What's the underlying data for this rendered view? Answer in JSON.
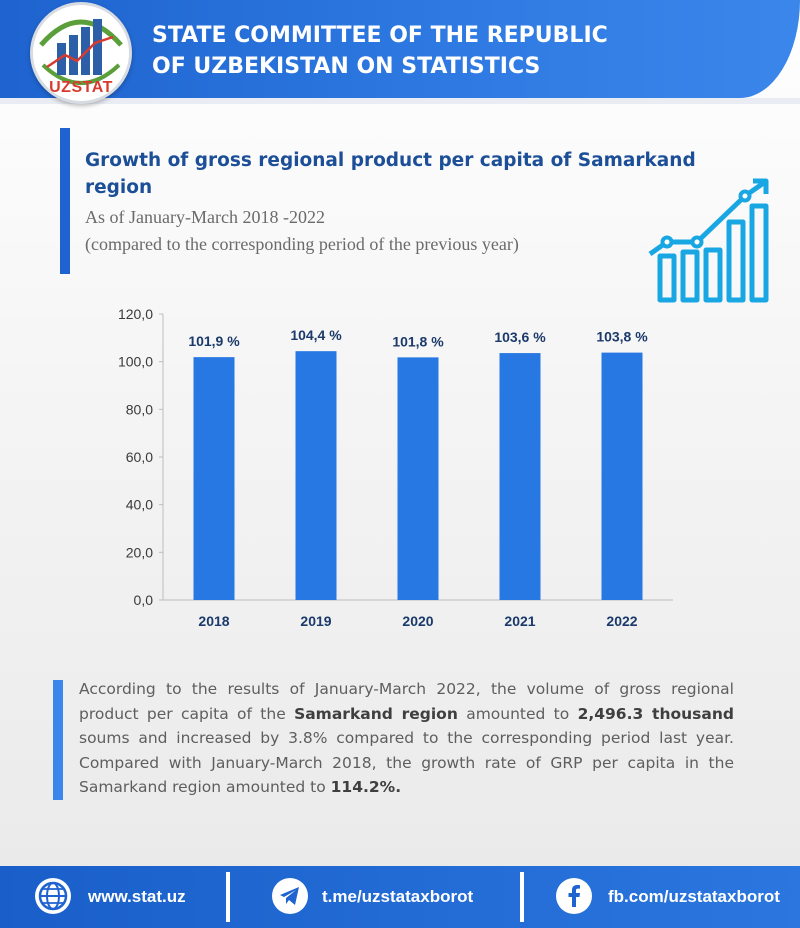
{
  "header": {
    "logo_text": "UZSTAT",
    "title_line1": "STATE COMMITTEE OF THE REPUBLIC",
    "title_line2": "OF UZBEKISTAN ON STATISTICS"
  },
  "chart_data": {
    "type": "bar",
    "title": "Growth of gross regional product per capita of Samarkand region",
    "subtitle": "As of January-March 2018 -2022",
    "subtitle2": "(compared to the corresponding period of the previous year)",
    "categories": [
      "2018",
      "2019",
      "2020",
      "2021",
      "2022"
    ],
    "values": [
      101.9,
      104.4,
      101.8,
      103.6,
      103.8
    ],
    "value_labels": [
      "101,9 %",
      "104,4 %",
      "101,8 %",
      "103,6 %",
      "103,8 %"
    ],
    "y_ticks": [
      "0,0",
      "20,0",
      "40,0",
      "60,0",
      "80,0",
      "100,0",
      "120,0"
    ],
    "ylim": [
      0,
      120
    ],
    "xlabel": "",
    "ylabel": "",
    "grid": false,
    "bar_color": "#2778e3"
  },
  "description": {
    "p1": "According to the results of January-March 2022, the volume of gross regional product per capita of the ",
    "b1": "Samarkand region",
    "p2": " amounted to ",
    "b2": "2,496.3 thousand",
    "p3": " soums and increased by 3.8% compared to the corresponding period last year. Compared with January-March 2018, the growth rate of GRP per capita in the Samarkand region amounted to ",
    "b3": "114.2%."
  },
  "footer": {
    "website": "www.stat.uz",
    "telegram": "t.me/uzstataxborot",
    "facebook": "fb.com/uzstataxborot"
  },
  "colors": {
    "header_blue": "#2f7be3",
    "title_blue": "#1c4f97",
    "logo_red": "#d83a2f"
  }
}
